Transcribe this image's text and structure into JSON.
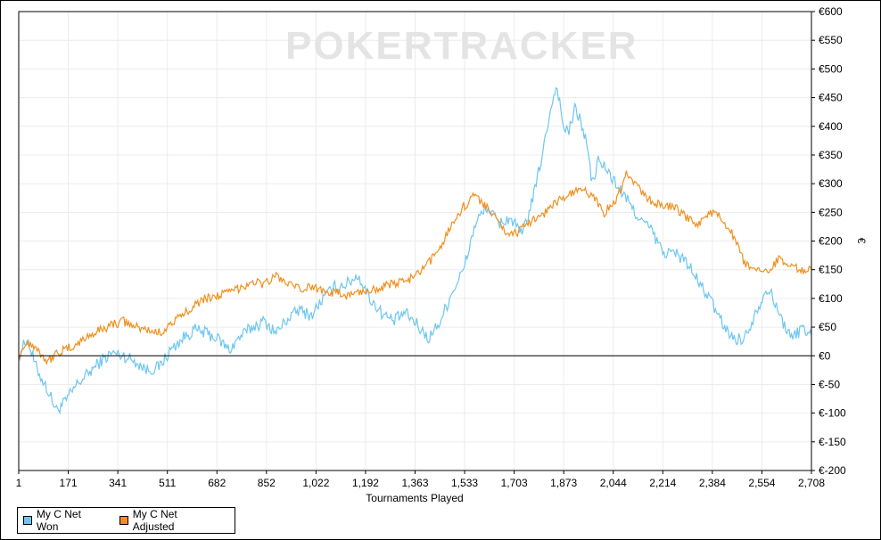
{
  "chart_data": {
    "type": "line",
    "title": "",
    "xlabel": "Tournaments Played",
    "ylabel": "€",
    "xlim": [
      1,
      2708
    ],
    "ylim": [
      -200,
      600
    ],
    "x_ticks": [
      "1",
      "171",
      "341",
      "511",
      "682",
      "852",
      "1,022",
      "1,192",
      "1,363",
      "1,533",
      "1,703",
      "1,873",
      "2,044",
      "2,214",
      "2,384",
      "2,554",
      "2,708"
    ],
    "y_ticks": [
      "€-200",
      "€-150",
      "€-100",
      "€-50",
      "€0",
      "€50",
      "€100",
      "€150",
      "€200",
      "€250",
      "€300",
      "€350",
      "€400",
      "€450",
      "€500",
      "€550",
      "€600"
    ],
    "grid": true,
    "legend_position": "bottom-left",
    "watermark": "POKERTRACKER",
    "series": [
      {
        "name": "My C Net Won",
        "color": "#6ec6f0",
        "x": [
          1,
          30,
          60,
          100,
          130,
          160,
          200,
          240,
          280,
          320,
          360,
          400,
          440,
          480,
          520,
          560,
          600,
          640,
          680,
          720,
          760,
          800,
          840,
          880,
          920,
          960,
          1000,
          1040,
          1080,
          1120,
          1160,
          1200,
          1240,
          1280,
          1320,
          1360,
          1400,
          1440,
          1480,
          1520,
          1560,
          1600,
          1640,
          1680,
          1720,
          1760,
          1800,
          1820,
          1840,
          1860,
          1880,
          1900,
          1920,
          1940,
          1960,
          1980,
          2000,
          2040,
          2080,
          2120,
          2160,
          2200,
          2240,
          2280,
          2320,
          2360,
          2400,
          2440,
          2480,
          2520,
          2560,
          2600,
          2640,
          2680,
          2708
        ],
        "values": [
          0,
          30,
          -20,
          -60,
          -95,
          -80,
          -50,
          -30,
          -10,
          5,
          0,
          -10,
          -25,
          -20,
          10,
          30,
          45,
          40,
          30,
          10,
          35,
          50,
          60,
          40,
          65,
          80,
          70,
          100,
          120,
          125,
          140,
          100,
          75,
          60,
          75,
          55,
          30,
          60,
          110,
          150,
          230,
          260,
          230,
          240,
          210,
          280,
          380,
          440,
          470,
          400,
          390,
          430,
          410,
          370,
          300,
          340,
          330,
          300,
          270,
          240,
          220,
          180,
          180,
          165,
          130,
          100,
          60,
          30,
          30,
          80,
          120,
          70,
          30,
          50,
          35
        ]
      },
      {
        "name": "My C Net Adjusted",
        "color": "#f0901e",
        "x": [
          1,
          30,
          60,
          100,
          130,
          160,
          200,
          240,
          280,
          320,
          360,
          400,
          440,
          480,
          520,
          560,
          600,
          640,
          680,
          720,
          760,
          800,
          840,
          880,
          920,
          960,
          1000,
          1040,
          1080,
          1120,
          1160,
          1200,
          1240,
          1280,
          1320,
          1360,
          1400,
          1440,
          1480,
          1520,
          1560,
          1600,
          1640,
          1680,
          1720,
          1760,
          1800,
          1840,
          1880,
          1920,
          1960,
          2000,
          2040,
          2080,
          2120,
          2160,
          2200,
          2240,
          2280,
          2320,
          2360,
          2400,
          2440,
          2480,
          2520,
          2560,
          2600,
          2640,
          2680,
          2708
        ],
        "values": [
          0,
          25,
          15,
          -10,
          5,
          10,
          20,
          35,
          45,
          55,
          60,
          50,
          45,
          40,
          55,
          70,
          90,
          100,
          105,
          110,
          120,
          130,
          125,
          140,
          125,
          115,
          120,
          115,
          110,
          105,
          110,
          115,
          120,
          125,
          130,
          140,
          160,
          190,
          230,
          260,
          280,
          260,
          230,
          210,
          220,
          240,
          250,
          270,
          280,
          290,
          280,
          250,
          270,
          320,
          290,
          270,
          260,
          260,
          240,
          230,
          250,
          240,
          210,
          160,
          145,
          150,
          170,
          160,
          145,
          150
        ]
      }
    ]
  }
}
